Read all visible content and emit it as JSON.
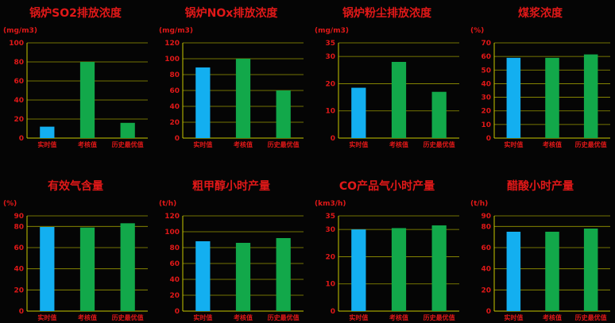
{
  "colors": {
    "realtime": "#13aff0",
    "other": "#12a84a",
    "grid": "#c8c800",
    "text": "#e01818"
  },
  "chart_data": [
    {
      "type": "bar",
      "title": "锅炉SO2排放浓度",
      "unit": "(mg/m3)",
      "categories": [
        "实时值",
        "考核值",
        "历史最优值"
      ],
      "values": [
        12,
        80,
        16
      ],
      "ylim": [
        0,
        100
      ],
      "yticks": [
        0,
        20,
        40,
        60,
        80,
        100
      ],
      "grid": true
    },
    {
      "type": "bar",
      "title": "锅炉NOx排放浓度",
      "unit": "(mg/m3)",
      "categories": [
        "实时值",
        "考核值",
        "历史最优值"
      ],
      "values": [
        89,
        100,
        60
      ],
      "ylim": [
        0,
        120
      ],
      "yticks": [
        0,
        20,
        40,
        60,
        80,
        100,
        120
      ],
      "grid": true
    },
    {
      "type": "bar",
      "title": "锅炉粉尘排放浓度",
      "unit": "(mg/m3)",
      "categories": [
        "实时值",
        "考核值",
        "历史最优值"
      ],
      "values": [
        18.5,
        28,
        17
      ],
      "ylim": [
        0,
        35
      ],
      "yticks": [
        0,
        10,
        20,
        30,
        35
      ],
      "grid": true
    },
    {
      "type": "bar",
      "title": "煤浆浓度",
      "unit": "(%)",
      "categories": [
        "实时值",
        "考核值",
        "历史最优值"
      ],
      "values": [
        59,
        59,
        61.5
      ],
      "ylim": [
        0,
        70
      ],
      "yticks": [
        0,
        10,
        20,
        30,
        40,
        50,
        60,
        70
      ],
      "grid": true
    },
    {
      "type": "bar",
      "title": "有效气含量",
      "unit": "(%)",
      "categories": [
        "实时值",
        "考核值",
        "历史最优值"
      ],
      "values": [
        79.5,
        79,
        83
      ],
      "ylim": [
        0,
        90
      ],
      "yticks": [
        0,
        20,
        40,
        60,
        80,
        90
      ],
      "grid": true
    },
    {
      "type": "bar",
      "title": "粗甲醇小时产量",
      "unit": "(t/h)",
      "categories": [
        "实时值",
        "考核值",
        "历史最优值"
      ],
      "values": [
        88,
        86,
        92
      ],
      "ylim": [
        0,
        120
      ],
      "yticks": [
        0,
        20,
        40,
        60,
        80,
        100,
        120
      ],
      "grid": true
    },
    {
      "type": "bar",
      "title": "CO产品气小时产量",
      "unit": "(km3/h)",
      "categories": [
        "实时值",
        "考核值",
        "历史最优值"
      ],
      "values": [
        30,
        30.5,
        31.5
      ],
      "ylim": [
        0,
        35
      ],
      "yticks": [
        0,
        10,
        20,
        30,
        35
      ],
      "grid": true
    },
    {
      "type": "bar",
      "title": "醋酸小时产量",
      "unit": "(t/h)",
      "categories": [
        "实时值",
        "考核值",
        "历史最优值"
      ],
      "values": [
        75,
        75,
        78
      ],
      "ylim": [
        0,
        90
      ],
      "yticks": [
        0,
        20,
        40,
        60,
        80,
        90
      ],
      "grid": true
    }
  ]
}
